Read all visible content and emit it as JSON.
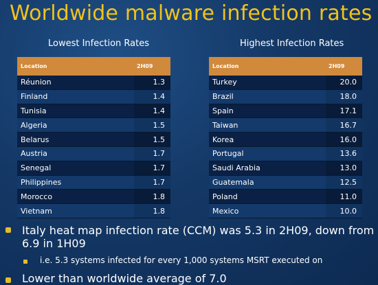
{
  "title": "Worldwide malware infection rates",
  "lowest": {
    "heading": "Lowest Infection Rates",
    "col_location": "Location",
    "col_period": "2H09",
    "rows": [
      {
        "location": "Réunion",
        "value": "1.3"
      },
      {
        "location": "Finland",
        "value": "1.4"
      },
      {
        "location": "Tunisia",
        "value": "1.4"
      },
      {
        "location": "Algeria",
        "value": "1.5"
      },
      {
        "location": "Belarus",
        "value": "1.5"
      },
      {
        "location": "Austria",
        "value": "1.7"
      },
      {
        "location": "Senegal",
        "value": "1.7"
      },
      {
        "location": "Philippines",
        "value": "1.7"
      },
      {
        "location": "Morocco",
        "value": "1.8"
      },
      {
        "location": "Vietnam",
        "value": "1.8"
      }
    ]
  },
  "highest": {
    "heading": "Highest Infection Rates",
    "col_location": "Location",
    "col_period": "2H09",
    "rows": [
      {
        "location": "Turkey",
        "value": "20.0"
      },
      {
        "location": "Brazil",
        "value": "18.0"
      },
      {
        "location": "Spain",
        "value": "17.1"
      },
      {
        "location": "Taiwan",
        "value": "16.7"
      },
      {
        "location": "Korea",
        "value": "16.0"
      },
      {
        "location": "Portugal",
        "value": "13.6"
      },
      {
        "location": "Saudi Arabia",
        "value": "13.0"
      },
      {
        "location": "Guatemala",
        "value": "12.5"
      },
      {
        "location": "Poland",
        "value": "11.0"
      },
      {
        "location": "Mexico",
        "value": "10.0"
      }
    ]
  },
  "bullets": {
    "main1": "Italy heat map infection rate (CCM) was 5.3 in 2H09, down from 6.9 in 1H09",
    "sub1": "i.e. 5.3 systems infected for every 1,000 systems MSRT executed on",
    "main2": "Lower than worldwide average of 7.0"
  },
  "colors": {
    "title": "#f2c21b",
    "header_band": "#d1893b",
    "bullet": "#e4bd2a",
    "background": "#143866"
  }
}
